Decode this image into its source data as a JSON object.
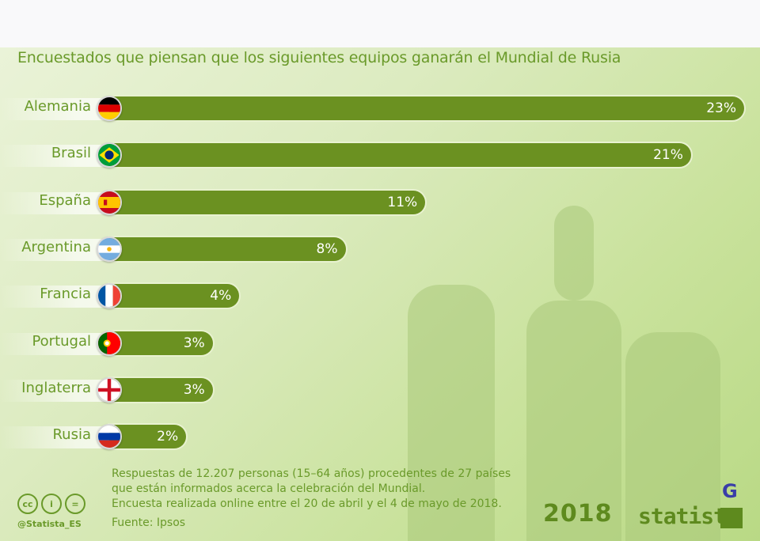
{
  "chart_data": {
    "type": "bar",
    "orientation": "horizontal",
    "title": "Encuestados que piensan que los siguientes equipos ganarán el Mundial de Rusia",
    "categories": [
      "Alemania",
      "Brasil",
      "España",
      "Argentina",
      "Francia",
      "Portugal",
      "Inglaterra",
      "Rusia"
    ],
    "values": [
      23,
      21,
      11,
      8,
      4,
      3,
      3,
      2
    ],
    "value_labels": [
      "23%",
      "21%",
      "11%",
      "8%",
      "4%",
      "3%",
      "3%",
      "2%"
    ],
    "unit": "%",
    "xlabel": "",
    "ylabel": "",
    "xlim": [
      0,
      23
    ],
    "grid": false,
    "bar_color": "#6b9121",
    "flags": [
      "germany-flag",
      "brazil-flag",
      "spain-flag",
      "argentina-flag",
      "france-flag",
      "portugal-flag",
      "england-flag",
      "russia-flag"
    ]
  },
  "footer": {
    "note_lines": [
      "Respuestas de 12.207 personas (15–64 años) procedentes de 27 países",
      "que están informados acerca la celebración del Mundial.",
      "Encuesta realizada online entre el 20 de abril y el 4 de mayo de 2018."
    ],
    "source": "Fuente: Ipsos",
    "handle": "@Statista_ES",
    "cc_icons": [
      "cc",
      "by",
      "nd"
    ],
    "cc_glyphs": [
      "cc",
      "i",
      "="
    ],
    "wc_logo": "2018",
    "brand": "statista",
    "g_logo": "G"
  }
}
